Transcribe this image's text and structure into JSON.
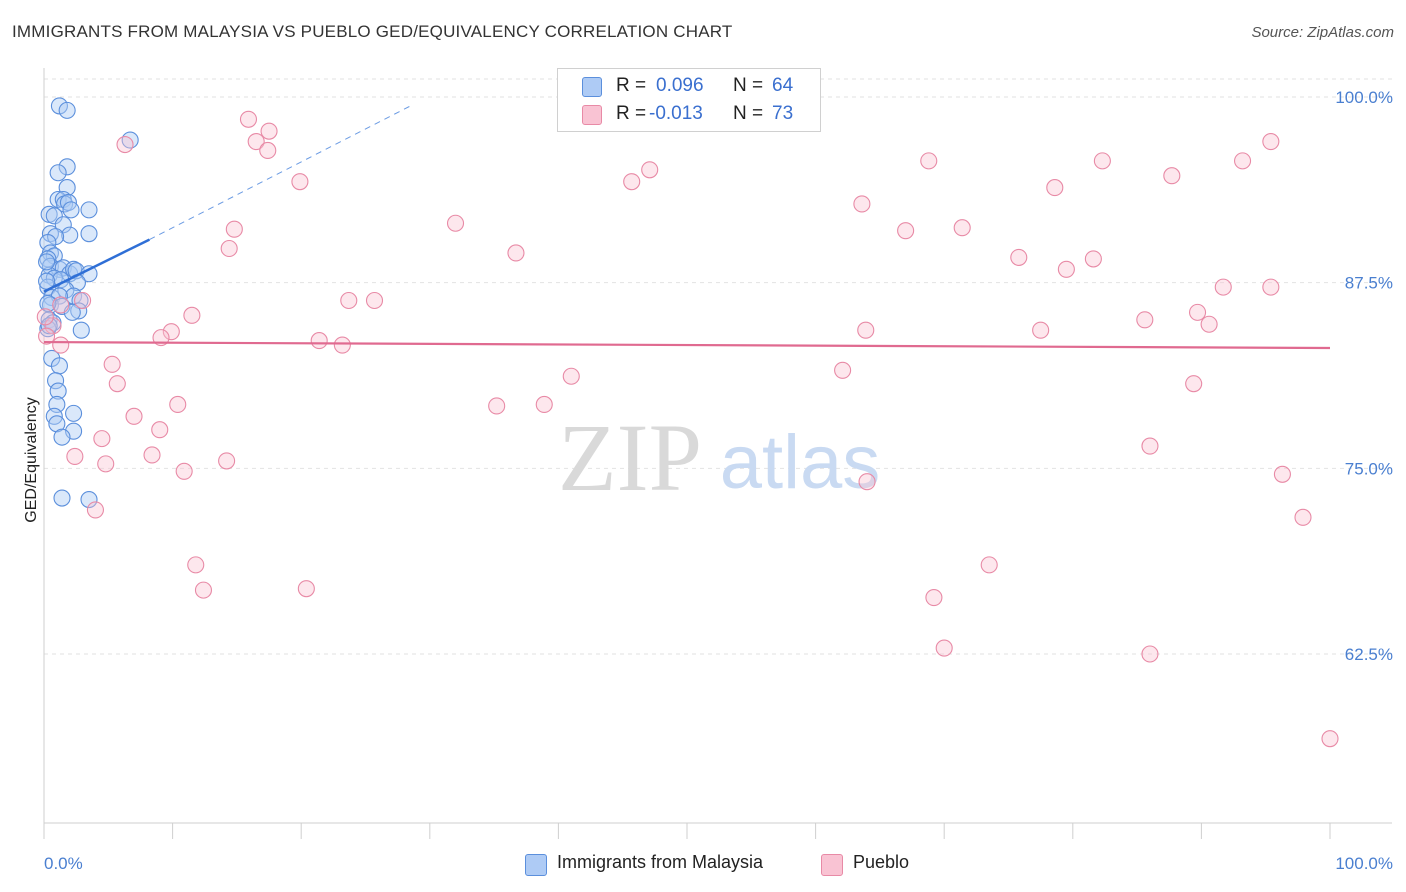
{
  "header": {
    "title": "IMMIGRANTS FROM MALAYSIA VS PUEBLO GED/EQUIVALENCY CORRELATION CHART",
    "source": "Source: ZipAtlas.com"
  },
  "watermark": {
    "zip": "ZIP",
    "atlas": "atlas"
  },
  "legend": {
    "r_label": "R =",
    "n_label": "N =",
    "series": [
      {
        "name": "Immigrants from Malaysia",
        "r": "0.096",
        "n": "64",
        "fill": "#aecbf5",
        "stroke": "#5b8fdc"
      },
      {
        "name": "Pueblo",
        "r": "-0.013",
        "n": "73",
        "fill": "#f9c3d3",
        "stroke": "#e88aa6"
      }
    ]
  },
  "chart_data": {
    "type": "scatter",
    "title": "IMMIGRANTS FROM MALAYSIA VS PUEBLO GED/EQUIVALENCY CORRELATION CHART",
    "xlabel": "",
    "ylabel": "GED/Equivalency",
    "xlim": [
      0,
      100
    ],
    "ylim": [
      50,
      102
    ],
    "x_tick_labels": [
      "0.0%",
      "100.0%"
    ],
    "y_ticks": [
      {
        "value": 100,
        "label": "100.0%"
      },
      {
        "value": 87.5,
        "label": "87.5%"
      },
      {
        "value": 75,
        "label": "75.0%"
      },
      {
        "value": 62.5,
        "label": "62.5%"
      }
    ],
    "grid": true,
    "series": [
      {
        "name": "Immigrants from Malaysia",
        "color": "#5b8fdc",
        "trend": {
          "x1": 0,
          "y1": 86.9,
          "x2": 8.2,
          "y2": 90.4,
          "ext_x2": 28.5,
          "ext_y2": 99.4
        },
        "points": [
          [
            1.2,
            99.4
          ],
          [
            1.8,
            99.1
          ],
          [
            6.7,
            97.1
          ],
          [
            1.8,
            95.3
          ],
          [
            1.1,
            94.9
          ],
          [
            1.8,
            93.9
          ],
          [
            1.1,
            93.1
          ],
          [
            1.5,
            93.1
          ],
          [
            1.6,
            92.8
          ],
          [
            1.9,
            92.9
          ],
          [
            2.1,
            92.4
          ],
          [
            3.5,
            92.4
          ],
          [
            0.4,
            92.1
          ],
          [
            0.8,
            92.0
          ],
          [
            1.5,
            91.4
          ],
          [
            2.0,
            90.7
          ],
          [
            3.5,
            90.8
          ],
          [
            0.5,
            90.8
          ],
          [
            0.9,
            90.6
          ],
          [
            0.3,
            90.2
          ],
          [
            0.5,
            89.5
          ],
          [
            0.8,
            89.3
          ],
          [
            0.3,
            89.1
          ],
          [
            0.5,
            88.6
          ],
          [
            1.2,
            88.4
          ],
          [
            1.5,
            88.5
          ],
          [
            2.0,
            88.1
          ],
          [
            2.3,
            88.4
          ],
          [
            2.5,
            88.3
          ],
          [
            3.5,
            88.1
          ],
          [
            0.4,
            88.0
          ],
          [
            0.8,
            87.8
          ],
          [
            1.3,
            87.7
          ],
          [
            2.6,
            87.5
          ],
          [
            0.3,
            87.2
          ],
          [
            1.7,
            87.0
          ],
          [
            2.3,
            86.6
          ],
          [
            0.6,
            86.5
          ],
          [
            1.2,
            86.6
          ],
          [
            2.8,
            86.3
          ],
          [
            0.5,
            86.0
          ],
          [
            1.4,
            85.9
          ],
          [
            2.7,
            85.6
          ],
          [
            2.2,
            85.5
          ],
          [
            0.4,
            85.0
          ],
          [
            0.7,
            84.8
          ],
          [
            2.9,
            84.3
          ],
          [
            0.3,
            84.4
          ],
          [
            0.6,
            82.4
          ],
          [
            1.2,
            81.9
          ],
          [
            0.9,
            80.9
          ],
          [
            1.1,
            80.2
          ],
          [
            1.0,
            79.3
          ],
          [
            2.3,
            78.7
          ],
          [
            0.8,
            78.5
          ],
          [
            1.0,
            78.0
          ],
          [
            2.3,
            77.5
          ],
          [
            1.4,
            77.1
          ],
          [
            1.4,
            73.0
          ],
          [
            3.5,
            72.9
          ],
          [
            0.2,
            88.9
          ],
          [
            0.2,
            87.6
          ],
          [
            0.3,
            86.1
          ],
          [
            0.4,
            84.6
          ]
        ]
      },
      {
        "name": "Pueblo",
        "color": "#e88aa6",
        "trend": {
          "x1": 0,
          "y1": 83.5,
          "x2": 100,
          "y2": 83.1
        },
        "points": [
          [
            15.9,
            98.5
          ],
          [
            17.5,
            97.7
          ],
          [
            16.5,
            97.0
          ],
          [
            6.3,
            96.8
          ],
          [
            17.4,
            96.4
          ],
          [
            95.4,
            97.0
          ],
          [
            93.2,
            95.7
          ],
          [
            68.8,
            95.7
          ],
          [
            82.3,
            95.7
          ],
          [
            47.1,
            95.1
          ],
          [
            87.7,
            94.7
          ],
          [
            45.7,
            94.3
          ],
          [
            19.9,
            94.3
          ],
          [
            78.6,
            93.9
          ],
          [
            63.6,
            92.8
          ],
          [
            32.0,
            91.5
          ],
          [
            14.8,
            91.1
          ],
          [
            71.4,
            91.2
          ],
          [
            67.0,
            91.0
          ],
          [
            14.4,
            89.8
          ],
          [
            36.7,
            89.5
          ],
          [
            81.6,
            89.1
          ],
          [
            75.8,
            89.2
          ],
          [
            79.5,
            88.4
          ],
          [
            91.7,
            87.2
          ],
          [
            95.4,
            87.2
          ],
          [
            23.7,
            86.3
          ],
          [
            25.7,
            86.3
          ],
          [
            3.0,
            86.3
          ],
          [
            1.3,
            86.0
          ],
          [
            11.5,
            85.3
          ],
          [
            89.7,
            85.5
          ],
          [
            85.6,
            85.0
          ],
          [
            90.6,
            84.7
          ],
          [
            0.7,
            84.6
          ],
          [
            9.9,
            84.2
          ],
          [
            63.9,
            84.3
          ],
          [
            77.5,
            84.3
          ],
          [
            9.1,
            83.8
          ],
          [
            21.4,
            83.6
          ],
          [
            23.2,
            83.3
          ],
          [
            1.3,
            83.3
          ],
          [
            5.3,
            82.0
          ],
          [
            62.1,
            81.6
          ],
          [
            41.0,
            81.2
          ],
          [
            5.7,
            80.7
          ],
          [
            89.4,
            80.7
          ],
          [
            10.4,
            79.3
          ],
          [
            35.2,
            79.2
          ],
          [
            38.9,
            79.3
          ],
          [
            7.0,
            78.5
          ],
          [
            9.0,
            77.6
          ],
          [
            4.5,
            77.0
          ],
          [
            86.0,
            76.5
          ],
          [
            8.4,
            75.9
          ],
          [
            2.4,
            75.8
          ],
          [
            14.2,
            75.5
          ],
          [
            4.8,
            75.3
          ],
          [
            10.9,
            74.8
          ],
          [
            96.3,
            74.6
          ],
          [
            64.0,
            74.1
          ],
          [
            4.0,
            72.2
          ],
          [
            97.9,
            71.7
          ],
          [
            11.8,
            68.5
          ],
          [
            73.5,
            68.5
          ],
          [
            12.4,
            66.8
          ],
          [
            20.4,
            66.9
          ],
          [
            69.2,
            66.3
          ],
          [
            70.0,
            62.9
          ],
          [
            86.0,
            62.5
          ],
          [
            100.0,
            56.8
          ],
          [
            0.2,
            83.9
          ],
          [
            0.1,
            85.2
          ]
        ]
      }
    ]
  }
}
